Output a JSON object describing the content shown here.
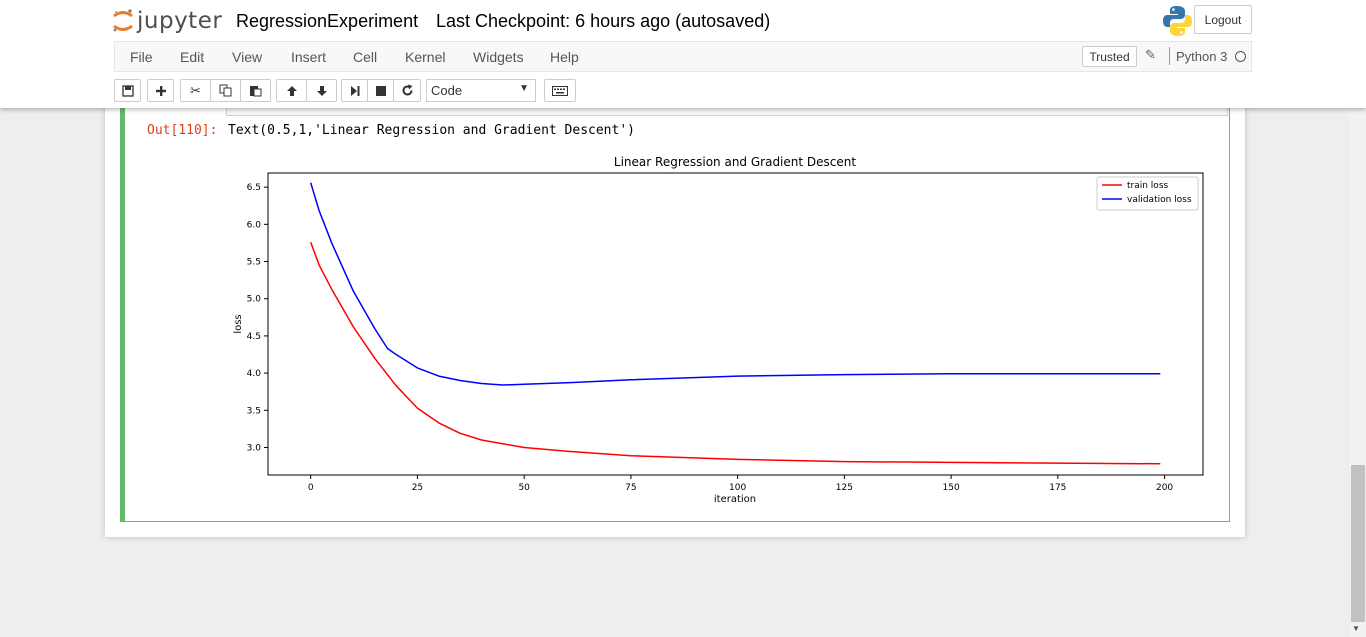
{
  "header": {
    "logo_text": "jupyter",
    "notebook_name": "RegressionExperiment",
    "checkpoint": "Last Checkpoint: 6 hours ago (autosaved)",
    "logout_label": "Logout"
  },
  "menu": {
    "items": [
      "File",
      "Edit",
      "View",
      "Insert",
      "Cell",
      "Kernel",
      "Widgets",
      "Help"
    ],
    "trusted_label": "Trusted",
    "kernel_name": "Python 3"
  },
  "toolbar": {
    "cell_type": "Code",
    "buttons": [
      "save-icon",
      "plus-icon",
      "cut-icon",
      "copy-icon",
      "paste-icon",
      "arrow-up-icon",
      "arrow-down-icon",
      "run-icon",
      "stop-icon",
      "restart-icon",
      "keyboard-icon"
    ]
  },
  "cell": {
    "out_prompt": "Out[110]:",
    "out_text": "Text(0.5,1,'Linear Regression and Gradient Descent')"
  },
  "chart_data": {
    "type": "line",
    "title": "Linear Regression and Gradient Descent",
    "xlabel": "iteration",
    "ylabel": "loss",
    "xlim": [
      -10,
      209
    ],
    "ylim": [
      2.63,
      6.69
    ],
    "xticks": [
      0,
      25,
      50,
      75,
      100,
      125,
      150,
      175,
      200
    ],
    "yticks": [
      3.0,
      3.5,
      4.0,
      4.5,
      5.0,
      5.5,
      6.0,
      6.5
    ],
    "grid": false,
    "legend": "top-right",
    "series": [
      {
        "name": "train loss",
        "color": "#ff0000",
        "x": [
          0,
          2,
          5,
          10,
          15,
          20,
          25,
          30,
          35,
          40,
          50,
          60,
          75,
          100,
          125,
          150,
          175,
          199
        ],
        "y": [
          5.76,
          5.45,
          5.12,
          4.62,
          4.2,
          3.83,
          3.53,
          3.33,
          3.19,
          3.1,
          3.0,
          2.95,
          2.89,
          2.84,
          2.81,
          2.8,
          2.79,
          2.78
        ]
      },
      {
        "name": "validation loss",
        "color": "#0000ff",
        "x": [
          0,
          2,
          5,
          10,
          15,
          18,
          20,
          25,
          30,
          35,
          40,
          45,
          50,
          60,
          75,
          100,
          125,
          150,
          175,
          199
        ],
        "y": [
          6.56,
          6.18,
          5.74,
          5.1,
          4.6,
          4.33,
          4.25,
          4.07,
          3.96,
          3.9,
          3.86,
          3.84,
          3.85,
          3.87,
          3.91,
          3.96,
          3.98,
          3.99,
          3.99,
          3.99
        ]
      }
    ]
  }
}
